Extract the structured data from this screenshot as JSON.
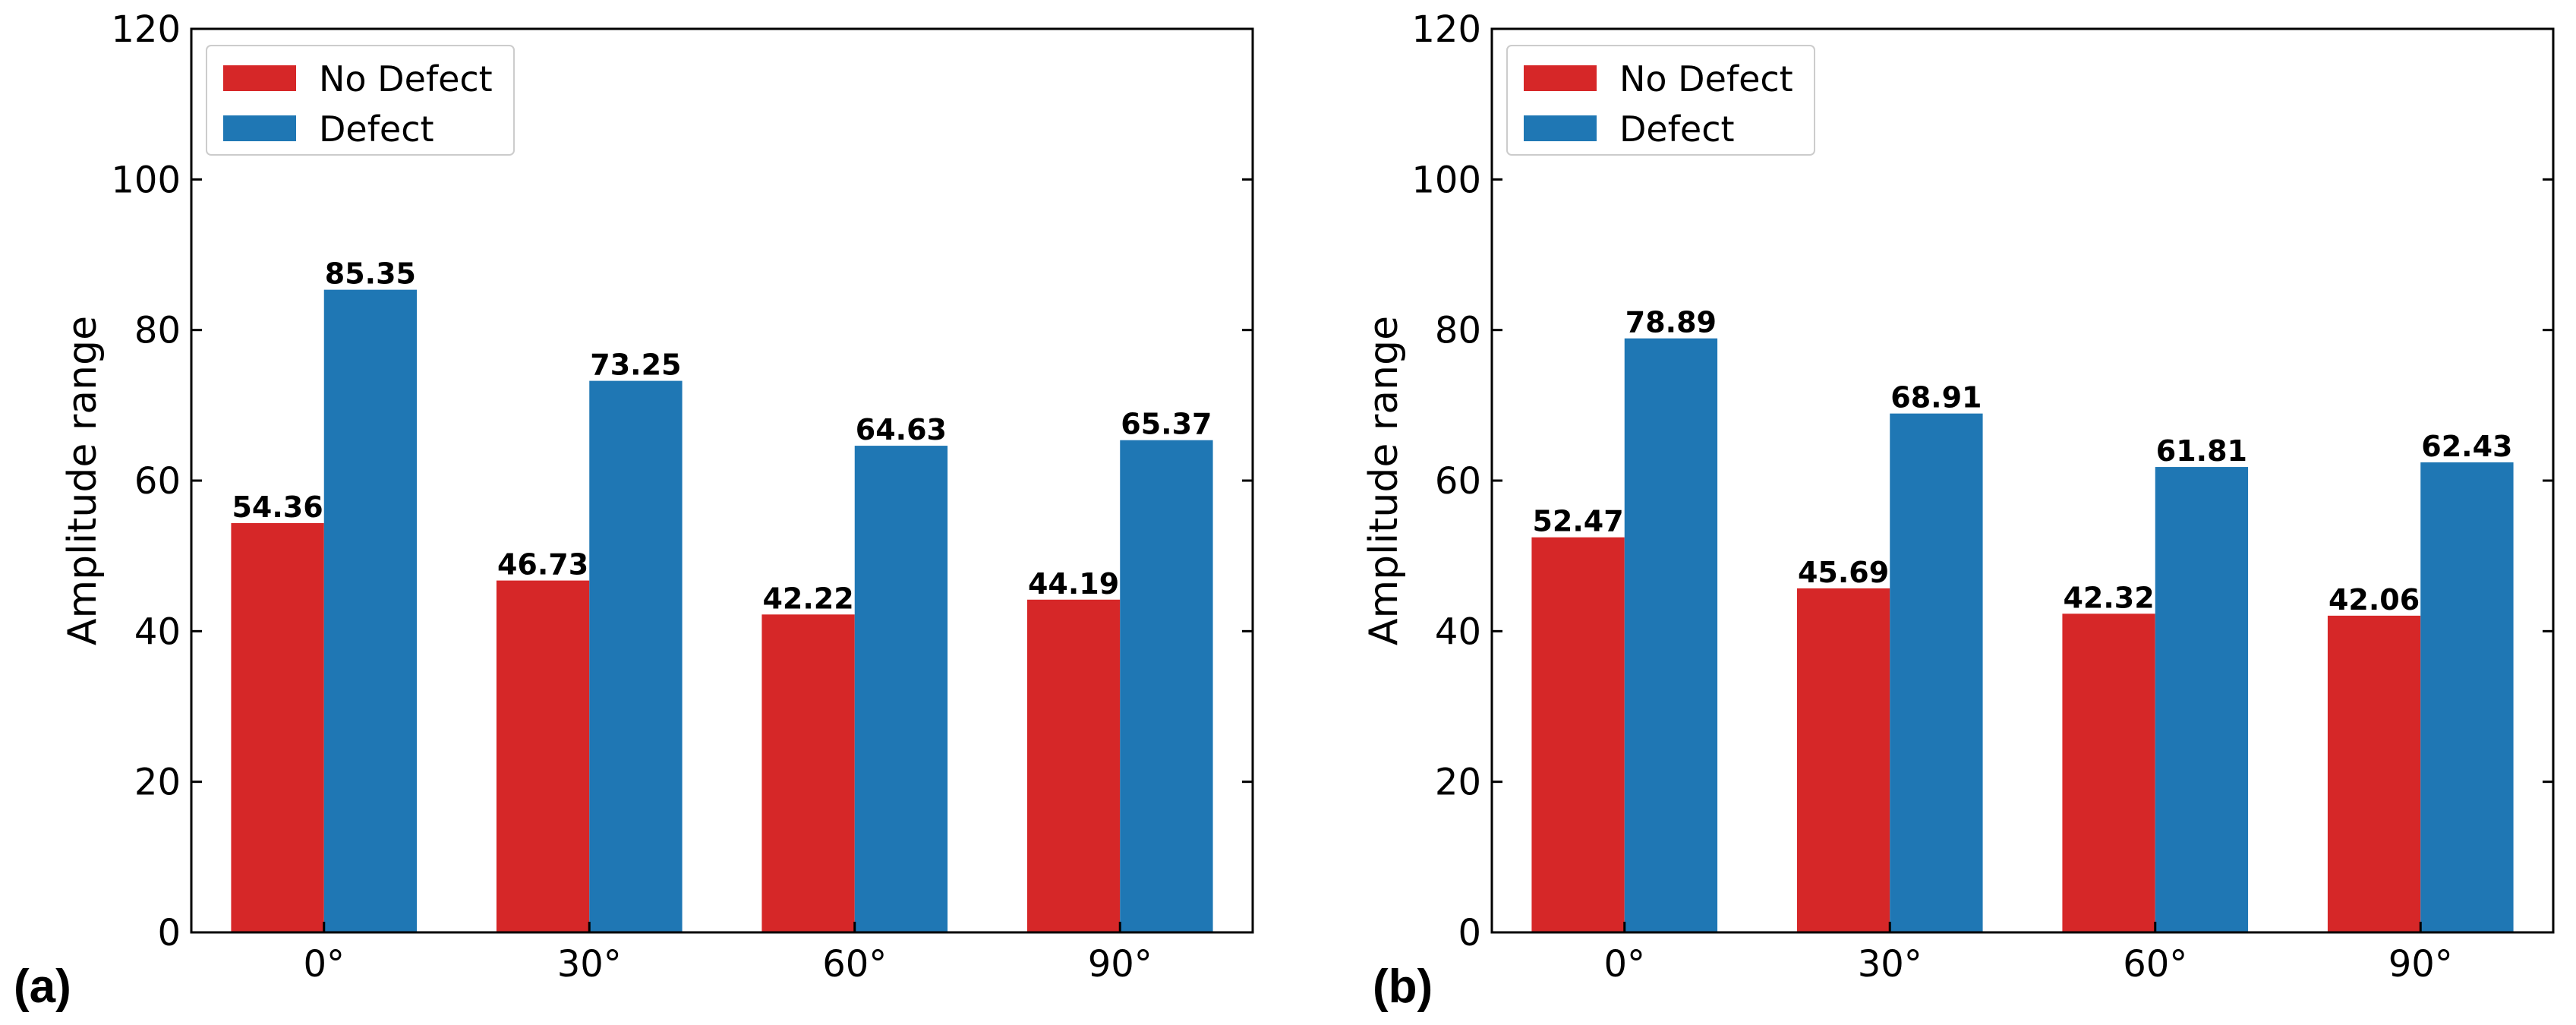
{
  "chart_data": [
    {
      "type": "bar",
      "panel_label": "(a)",
      "categories": [
        "0°",
        "30°",
        "60°",
        "90°"
      ],
      "series": [
        {
          "name": "No Defect",
          "color": "#d62728",
          "values": [
            54.36,
            46.73,
            42.22,
            44.19
          ]
        },
        {
          "name": "Defect",
          "color": "#1f77b4",
          "values": [
            85.35,
            73.25,
            64.63,
            65.37
          ]
        }
      ],
      "title": "",
      "xlabel": "",
      "ylabel": "Amplitude range",
      "ylim": [
        0,
        120
      ],
      "yticks": [
        0,
        20,
        40,
        60,
        80,
        100,
        120
      ],
      "grid": false,
      "legend_position": "top-left"
    },
    {
      "type": "bar",
      "panel_label": "(b)",
      "categories": [
        "0°",
        "30°",
        "60°",
        "90°"
      ],
      "series": [
        {
          "name": "No Defect",
          "color": "#d62728",
          "values": [
            52.47,
            45.69,
            42.32,
            42.06
          ]
        },
        {
          "name": "Defect",
          "color": "#1f77b4",
          "values": [
            78.89,
            68.91,
            61.81,
            62.43
          ]
        }
      ],
      "title": "",
      "xlabel": "",
      "ylabel": "Amplitude range",
      "ylim": [
        0,
        120
      ],
      "yticks": [
        0,
        20,
        40,
        60,
        80,
        100,
        120
      ],
      "grid": false,
      "legend_position": "top-left"
    }
  ]
}
